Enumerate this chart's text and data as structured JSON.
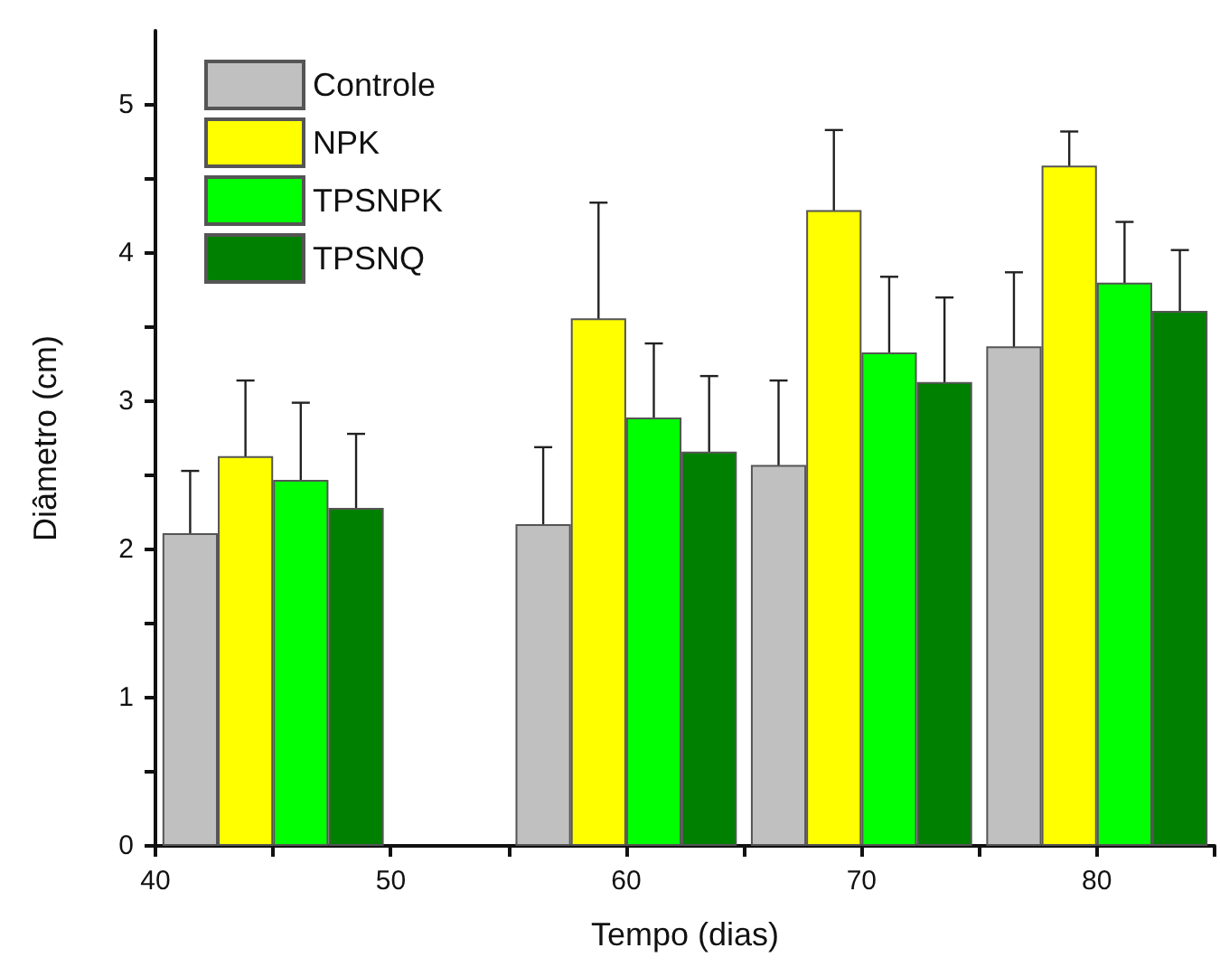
{
  "chart_data": {
    "type": "bar",
    "xlabel": "Tempo (dias)",
    "ylabel": "Diâmetro (cm)",
    "x": [
      45,
      60,
      70,
      80
    ],
    "series": [
      {
        "name": "Controle",
        "color": "#c0c0c0",
        "values": [
          2.11,
          2.17,
          2.57,
          3.37
        ],
        "errors": [
          0.42,
          0.52,
          0.57,
          0.5
        ]
      },
      {
        "name": "NPK",
        "color": "#ffff00",
        "values": [
          2.63,
          3.56,
          4.29,
          4.59
        ],
        "errors": [
          0.51,
          0.78,
          0.54,
          0.23
        ]
      },
      {
        "name": "TPSNPK",
        "color": "#00ff00",
        "values": [
          2.47,
          2.89,
          3.33,
          3.8
        ],
        "errors": [
          0.52,
          0.5,
          0.51,
          0.41
        ]
      },
      {
        "name": "TPSNQ",
        "color": "#008000",
        "values": [
          2.28,
          2.66,
          3.13,
          3.61
        ],
        "errors": [
          0.5,
          0.51,
          0.57,
          0.41
        ]
      }
    ],
    "xlim": [
      40,
      85
    ],
    "xticks": [
      40,
      {
        "value": 45,
        "label": null
      },
      50,
      {
        "value": 55,
        "label": null
      },
      60,
      {
        "value": 65,
        "label": null
      },
      70,
      {
        "value": 75,
        "label": null
      },
      80,
      {
        "value": 85,
        "label": null
      }
    ],
    "ylim": [
      0,
      5.5
    ],
    "yticks": [
      0,
      {
        "value": 0.5,
        "label": null
      },
      1,
      {
        "value": 1.5,
        "label": null
      },
      2,
      {
        "value": 2.5,
        "label": null
      },
      3,
      {
        "value": 3.5,
        "label": null
      },
      4,
      {
        "value": 4.5,
        "label": null
      },
      5
    ],
    "legend": "top left",
    "grid": false
  }
}
